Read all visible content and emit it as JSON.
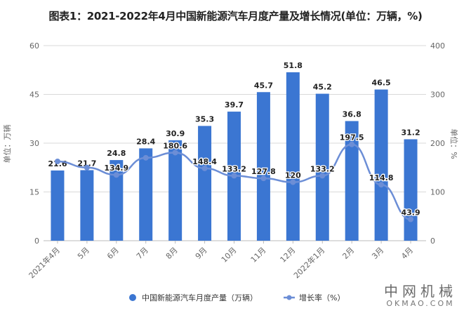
{
  "title": "图表1：2021-2022年4月中国新能源汽车月度产量及增长情况(单位：万辆，%)",
  "watermark": {
    "cn": "中网机械",
    "en": "OKMAO.COM"
  },
  "colors": {
    "bar": "#3B76D2",
    "line": "#6C8ED6",
    "grid": "#d9d9d9",
    "axis_text": "#666666"
  },
  "chart_data": {
    "type": "bar",
    "title": "图表1：2021-2022年4月中国新能源汽车月度产量及增长情况(单位：万辆，%)",
    "categories": [
      "2021年4月",
      "5月",
      "6月",
      "7月",
      "8月",
      "9月",
      "10月",
      "11月",
      "12月",
      "2022年1月",
      "2月",
      "3月",
      "4月"
    ],
    "series": [
      {
        "name": "中国新能源汽车月度产量（万辆）",
        "type": "bar",
        "axis": "left",
        "values": [
          21.6,
          21.7,
          24.8,
          28.4,
          30.9,
          35.3,
          39.7,
          45.7,
          51.8,
          45.2,
          36.8,
          46.5,
          31.2
        ]
      },
      {
        "name": "增长率（%）",
        "type": "line",
        "axis": "right",
        "values": [
          null,
          150,
          134.9,
          170,
          180.6,
          148.4,
          133.2,
          127.8,
          120,
          133.2,
          197.5,
          114.8,
          43.9
        ],
        "labels": [
          "",
          "",
          "134.9",
          "",
          "180.6",
          "148.4",
          "133.2",
          "127.8",
          "120",
          "133.2",
          "197.5",
          "114.8",
          "43.9"
        ]
      }
    ],
    "y_left": {
      "label": "单位：万辆",
      "ylim": [
        0,
        60
      ],
      "ticks": [
        0,
        15,
        30,
        45,
        60
      ]
    },
    "y_right": {
      "label": "单位：%",
      "ylim": [
        0,
        400
      ],
      "ticks": [
        0,
        100,
        200,
        300,
        400
      ]
    },
    "grid": true,
    "legend_position": "bottom"
  },
  "legend": [
    {
      "label": "中国新能源汽车月度产量（万辆）",
      "icon": "circle"
    },
    {
      "label": "增长率（%）",
      "icon": "line-dot"
    }
  ]
}
